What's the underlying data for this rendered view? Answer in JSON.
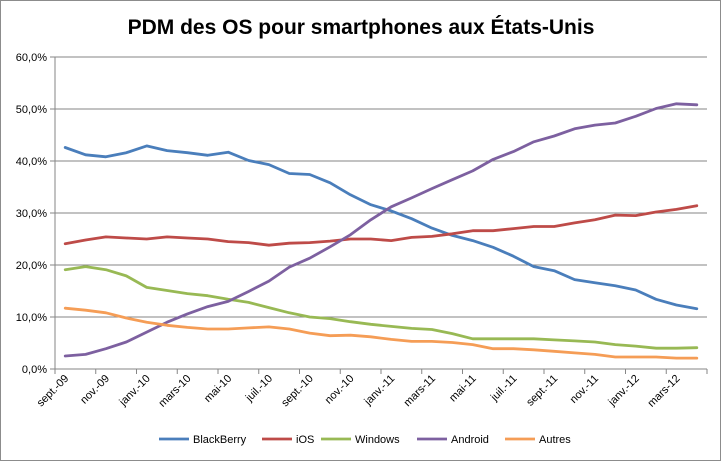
{
  "chart_data": {
    "type": "line",
    "title": "PDM des OS pour smartphones aux États-Unis",
    "xlabel": "",
    "ylabel": "",
    "ylim": [
      0,
      60
    ],
    "y_ticks": [
      "0,0%",
      "10,0%",
      "20,0%",
      "30,0%",
      "40,0%",
      "50,0%",
      "60,0%"
    ],
    "y_tick_values": [
      0,
      10,
      20,
      30,
      40,
      50,
      60
    ],
    "x": [
      "sept.-09",
      "oct.-09",
      "nov.-09",
      "déc.-09",
      "janv.-10",
      "févr.-10",
      "mars-10",
      "avr.-10",
      "mai-10",
      "juin-10",
      "juil.-10",
      "août-10",
      "sept.-10",
      "oct.-10",
      "nov.-10",
      "déc.-10",
      "janv.-11",
      "févr.-11",
      "mars-11",
      "avr.-11",
      "mai-11",
      "juin-11",
      "juil.-11",
      "août-11",
      "sept.-11",
      "oct.-11",
      "nov.-11",
      "déc.-11",
      "janv.-12",
      "févr.-12",
      "mars-12",
      "avr.-12"
    ],
    "x_tick_labels": [
      "sept.-09",
      "nov.-09",
      "janv.-10",
      "mars-10",
      "mai-10",
      "juil.-10",
      "sept.-10",
      "nov.-10",
      "janv.-11",
      "mars-11",
      "mai-11",
      "juil.-11",
      "sept.-11",
      "nov.-11",
      "janv.-12",
      "mars-12"
    ],
    "grid": "horizontal",
    "legend_position": "bottom",
    "series": [
      {
        "name": "BlackBerry",
        "color": "#4a7ebb",
        "values": [
          42.6,
          41.2,
          40.8,
          41.6,
          42.9,
          42.0,
          41.6,
          41.1,
          41.7,
          40.1,
          39.3,
          37.6,
          37.4,
          35.8,
          33.5,
          31.6,
          30.4,
          28.9,
          27.1,
          25.7,
          24.7,
          23.4,
          21.7,
          19.7,
          18.9,
          17.2,
          16.6,
          16.0,
          15.2,
          13.4,
          12.3,
          11.6
        ]
      },
      {
        "name": "iOS",
        "color": "#be4b48",
        "values": [
          24.1,
          24.8,
          25.4,
          25.2,
          25.0,
          25.4,
          25.2,
          25.0,
          24.5,
          24.3,
          23.8,
          24.2,
          24.3,
          24.6,
          25.0,
          25.0,
          24.7,
          25.3,
          25.5,
          26.0,
          26.6,
          26.6,
          27.0,
          27.4,
          27.4,
          28.1,
          28.7,
          29.6,
          29.5,
          30.2,
          30.7,
          31.4
        ]
      },
      {
        "name": "Windows",
        "color": "#98b954",
        "values": [
          19.1,
          19.7,
          19.1,
          17.9,
          15.7,
          15.1,
          14.5,
          14.1,
          13.4,
          12.8,
          11.8,
          10.8,
          10.0,
          9.7,
          9.1,
          8.6,
          8.2,
          7.8,
          7.6,
          6.8,
          5.8,
          5.8,
          5.8,
          5.8,
          5.6,
          5.4,
          5.2,
          4.7,
          4.4,
          4.0,
          4.0,
          4.1
        ]
      },
      {
        "name": "Android",
        "color": "#7d60a0",
        "values": [
          2.5,
          2.8,
          3.9,
          5.2,
          7.1,
          9.0,
          10.6,
          12.0,
          13.0,
          14.9,
          16.9,
          19.6,
          21.3,
          23.5,
          25.8,
          28.7,
          31.2,
          32.9,
          34.7,
          36.4,
          38.1,
          40.3,
          41.8,
          43.7,
          44.8,
          46.2,
          46.9,
          47.3,
          48.6,
          50.1,
          51.0,
          50.8
        ]
      },
      {
        "name": "Autres",
        "color": "#f59d56",
        "values": [
          11.7,
          11.3,
          10.8,
          9.8,
          9.0,
          8.4,
          8.0,
          7.7,
          7.7,
          7.9,
          8.1,
          7.7,
          6.9,
          6.4,
          6.5,
          6.2,
          5.7,
          5.3,
          5.3,
          5.1,
          4.7,
          3.9,
          3.9,
          3.7,
          3.4,
          3.1,
          2.8,
          2.3,
          2.3,
          2.3,
          2.1,
          2.1
        ]
      }
    ]
  }
}
